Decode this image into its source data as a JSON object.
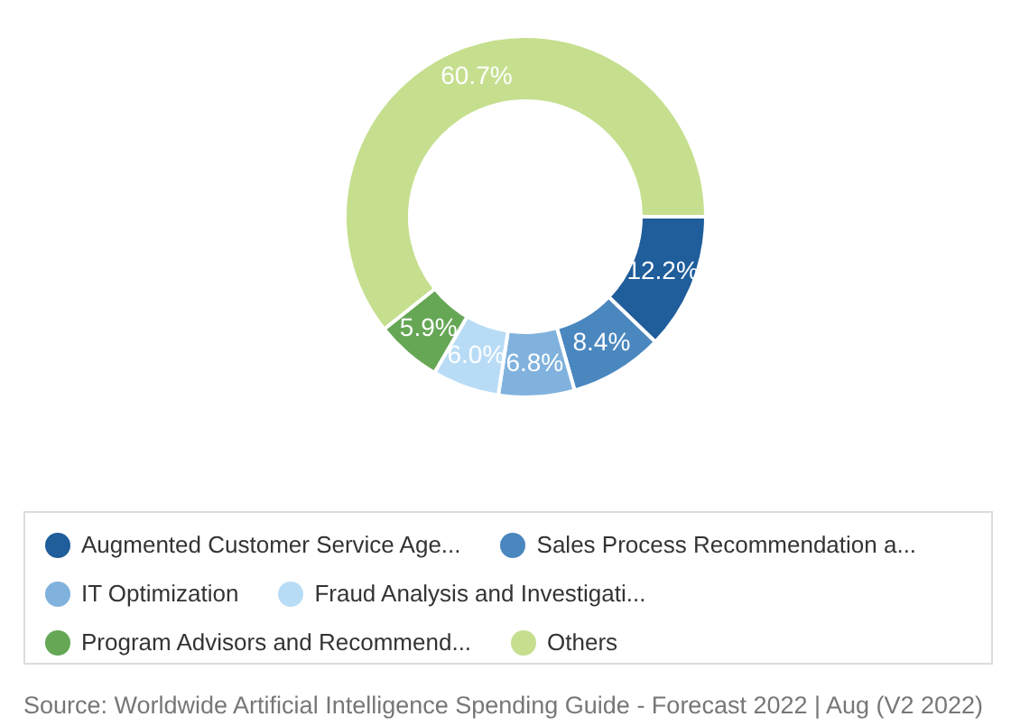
{
  "chart_data": {
    "type": "donut",
    "categories": [
      "Augmented Customer Service Age...",
      "Sales Process Recommendation a...",
      "IT Optimization",
      "Fraud Analysis and Investigati...",
      "Program Advisors and Recommend...",
      "Others"
    ],
    "values": [
      12.2,
      8.4,
      6.8,
      6.0,
      5.9,
      60.7
    ],
    "colors": [
      "#1f5d9b",
      "#4a87bf",
      "#80b2dd",
      "#b9dcf6",
      "#66a756",
      "#c5df8f"
    ],
    "value_labels": [
      "12.2%",
      "8.4%",
      "6.8%",
      "6.0%",
      "5.9%",
      "60.7%"
    ],
    "legend": "bottom",
    "annotations": [
      "Source: Worldwide Artificial Intelligence Spending Guide - Forecast 2022 | Aug (V2 2022)"
    ]
  }
}
